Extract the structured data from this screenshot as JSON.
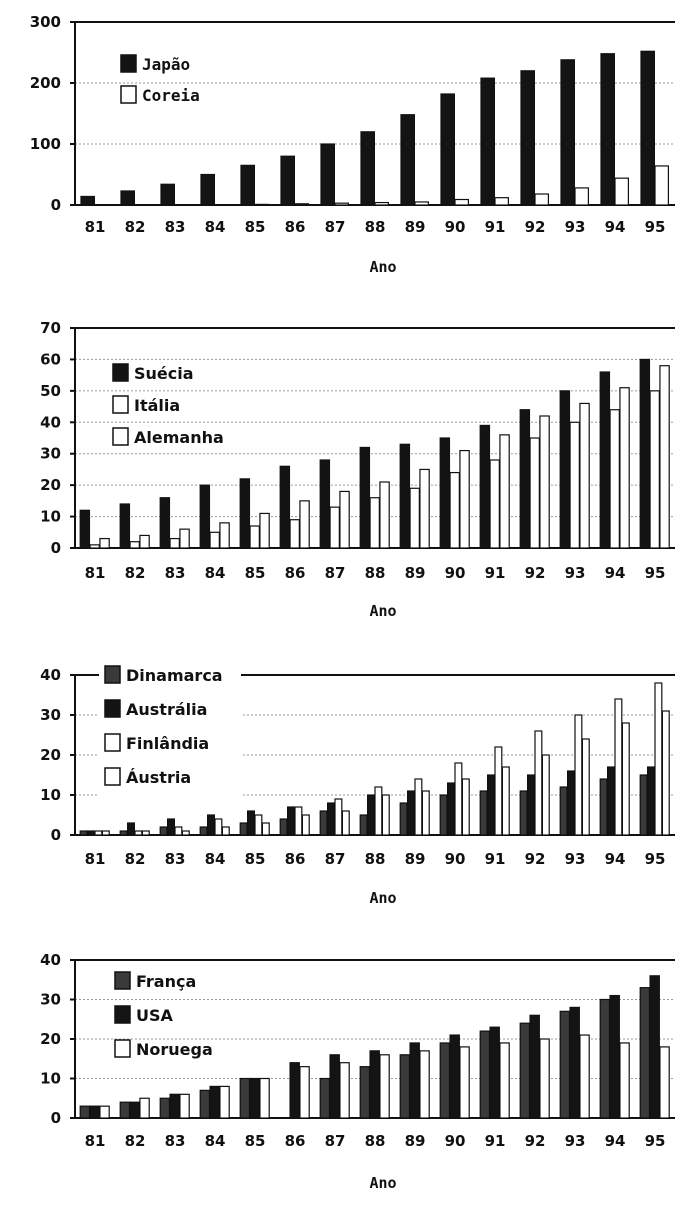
{
  "colors": {
    "black": "#141414",
    "dark": "#3a3a3a",
    "white": "#ffffff",
    "grid": "#9a9a9a"
  },
  "chart_data": [
    {
      "type": "bar",
      "xlabel": "Ano",
      "ylim": [
        0,
        300
      ],
      "yticks": [
        0,
        100,
        200,
        300
      ],
      "categories": [
        "81",
        "82",
        "83",
        "84",
        "85",
        "86",
        "87",
        "88",
        "89",
        "90",
        "91",
        "92",
        "93",
        "94",
        "95"
      ],
      "legend_position": "top-left",
      "grid": true,
      "series": [
        {
          "name": "Japão",
          "fill": "black",
          "values": [
            14,
            23,
            34,
            50,
            65,
            80,
            100,
            120,
            148,
            182,
            208,
            220,
            238,
            248,
            252
          ]
        },
        {
          "name": "Coreia",
          "fill": "white",
          "values": [
            0,
            0,
            0,
            0,
            1,
            2,
            3,
            4,
            5,
            9,
            12,
            18,
            28,
            44,
            64
          ]
        }
      ]
    },
    {
      "type": "bar",
      "xlabel": "Ano",
      "ylim": [
        0,
        70
      ],
      "yticks": [
        0,
        10,
        20,
        30,
        40,
        50,
        60,
        70
      ],
      "categories": [
        "81",
        "82",
        "83",
        "84",
        "85",
        "86",
        "87",
        "88",
        "89",
        "90",
        "91",
        "92",
        "93",
        "94",
        "95"
      ],
      "legend_position": "top-left",
      "grid": true,
      "series": [
        {
          "name": "Suécia",
          "fill": "black",
          "values": [
            12,
            14,
            16,
            20,
            22,
            26,
            28,
            32,
            33,
            35,
            39,
            44,
            50,
            56,
            60
          ]
        },
        {
          "name": "Itália",
          "fill": "white",
          "values": [
            1,
            2,
            3,
            5,
            7,
            9,
            13,
            16,
            19,
            24,
            28,
            35,
            40,
            44,
            50
          ]
        },
        {
          "name": "Alemanha",
          "fill": "white",
          "values": [
            3,
            4,
            6,
            8,
            11,
            15,
            18,
            21,
            25,
            31,
            36,
            42,
            46,
            51,
            58
          ]
        }
      ]
    },
    {
      "type": "bar",
      "xlabel": "Ano",
      "ylim": [
        0,
        40
      ],
      "yticks": [
        0,
        10,
        20,
        30,
        40
      ],
      "categories": [
        "81",
        "82",
        "83",
        "84",
        "85",
        "86",
        "87",
        "88",
        "89",
        "90",
        "91",
        "92",
        "93",
        "94",
        "95"
      ],
      "legend_position": "top-left",
      "grid": true,
      "series": [
        {
          "name": "Dinamarca",
          "fill": "dark",
          "values": [
            1,
            1,
            2,
            2,
            3,
            4,
            6,
            5,
            8,
            10,
            11,
            11,
            12,
            14,
            15
          ]
        },
        {
          "name": "Austrália",
          "fill": "black",
          "values": [
            1,
            3,
            4,
            5,
            6,
            7,
            8,
            10,
            11,
            13,
            15,
            15,
            16,
            17,
            17
          ]
        },
        {
          "name": "Finlândia",
          "fill": "white",
          "values": [
            1,
            1,
            2,
            4,
            5,
            7,
            9,
            12,
            14,
            18,
            22,
            26,
            30,
            34,
            38
          ]
        },
        {
          "name": "Áustria",
          "fill": "white",
          "values": [
            1,
            1,
            1,
            2,
            3,
            5,
            6,
            10,
            11,
            14,
            17,
            20,
            24,
            28,
            31
          ]
        }
      ]
    },
    {
      "type": "bar",
      "xlabel": "Ano",
      "ylim": [
        0,
        40
      ],
      "yticks": [
        0,
        10,
        20,
        30,
        40
      ],
      "categories": [
        "81",
        "82",
        "83",
        "84",
        "85",
        "86",
        "87",
        "88",
        "89",
        "90",
        "91",
        "92",
        "93",
        "94",
        "95"
      ],
      "legend_position": "top-left",
      "grid": true,
      "series": [
        {
          "name": "França",
          "fill": "dark",
          "values": [
            3,
            4,
            5,
            7,
            10,
            0,
            10,
            13,
            16,
            19,
            22,
            24,
            27,
            30,
            33
          ]
        },
        {
          "name": "USA",
          "fill": "black",
          "values": [
            3,
            4,
            6,
            8,
            10,
            14,
            16,
            17,
            19,
            21,
            23,
            26,
            28,
            31,
            36
          ]
        },
        {
          "name": "Noruega",
          "fill": "white",
          "values": [
            3,
            5,
            6,
            8,
            10,
            13,
            14,
            16,
            17,
            18,
            19,
            20,
            21,
            19,
            18
          ]
        }
      ]
    }
  ]
}
